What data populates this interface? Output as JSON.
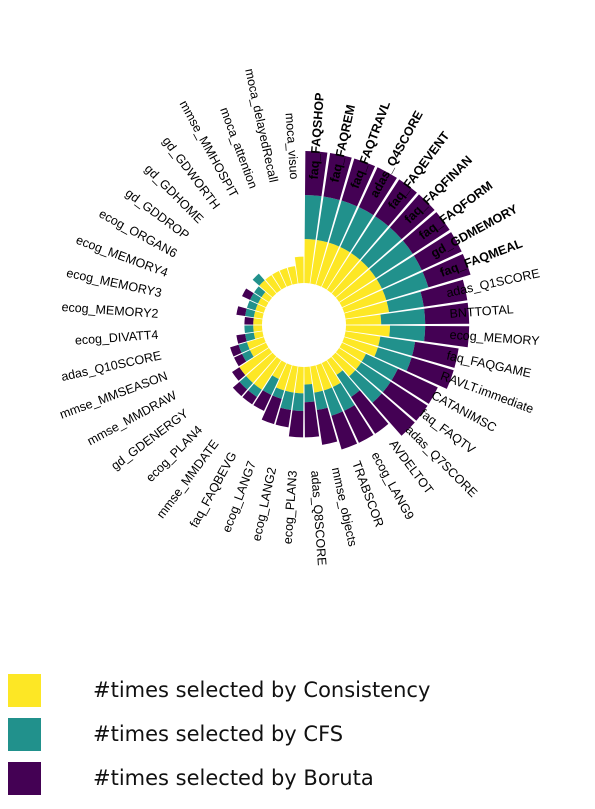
{
  "chart_data": {
    "type": "radial-stacked-bar",
    "title": "",
    "series": [
      {
        "name": "#times selected by Consistency",
        "color": "#fde725"
      },
      {
        "name": "#times selected by CFS",
        "color": "#21918c"
      },
      {
        "name": "#times selected by Boruta",
        "color": "#440154"
      }
    ],
    "categories": [
      {
        "label": "faq_FAQSHOP",
        "bold": true,
        "values": [
          5,
          5,
          5
        ]
      },
      {
        "label": "faq_FAQREM",
        "bold": true,
        "values": [
          5,
          5,
          5
        ]
      },
      {
        "label": "faq_FAQTRAVL",
        "bold": true,
        "values": [
          5,
          5,
          5
        ]
      },
      {
        "label": "adas_Q4SCORE",
        "bold": true,
        "values": [
          5,
          5,
          5
        ]
      },
      {
        "label": "faq_FAQEVENT",
        "bold": true,
        "values": [
          5,
          5,
          5
        ]
      },
      {
        "label": "faq_FAQFINAN",
        "bold": true,
        "values": [
          5,
          5,
          5
        ]
      },
      {
        "label": "faq_FAQFORM",
        "bold": true,
        "values": [
          5,
          5,
          5
        ]
      },
      {
        "label": "gd_GDMEMORY",
        "bold": true,
        "values": [
          5,
          5,
          5
        ]
      },
      {
        "label": "faq_FAQMEAL",
        "bold": true,
        "values": [
          5,
          5,
          5
        ]
      },
      {
        "label": "adas_Q1SCORE",
        "bold": false,
        "values": [
          5,
          4,
          5
        ]
      },
      {
        "label": "BNTTOTAL",
        "bold": false,
        "values": [
          4,
          5,
          5
        ]
      },
      {
        "label": "ecog_MEMORY",
        "bold": false,
        "values": [
          5,
          4,
          5
        ]
      },
      {
        "label": "faq_FAQGAME",
        "bold": false,
        "values": [
          4,
          4,
          5
        ]
      },
      {
        "label": "RAVLT.immediate",
        "bold": false,
        "values": [
          4,
          4,
          5
        ]
      },
      {
        "label": "CATANIMSC",
        "bold": false,
        "values": [
          3,
          4,
          5
        ]
      },
      {
        "label": "faq_FAQTV",
        "bold": false,
        "values": [
          3,
          4,
          5
        ]
      },
      {
        "label": "adas_Q7SCORE",
        "bold": false,
        "values": [
          3,
          4,
          5
        ]
      },
      {
        "label": "AVDELTOT",
        "bold": false,
        "values": [
          2,
          3,
          5
        ]
      },
      {
        "label": "ecog_LANG9",
        "bold": false,
        "values": [
          3,
          3,
          4
        ]
      },
      {
        "label": "TRABSCOR",
        "bold": false,
        "values": [
          3,
          3,
          4
        ]
      },
      {
        "label": "mmse_objects",
        "bold": false,
        "values": [
          3,
          2,
          4
        ]
      },
      {
        "label": "adas_Q8SCORE",
        "bold": false,
        "values": [
          2,
          2,
          4
        ]
      },
      {
        "label": "ecog_PLAN3",
        "bold": false,
        "values": [
          3,
          2,
          3
        ]
      },
      {
        "label": "ecog_LANG2",
        "bold": false,
        "values": [
          3,
          2,
          2
        ]
      },
      {
        "label": "ecog_LANG7",
        "bold": false,
        "values": [
          3,
          1,
          3
        ]
      },
      {
        "label": "faq_FAQBEVG",
        "bold": false,
        "values": [
          2,
          2,
          2
        ]
      },
      {
        "label": "mmse_MMDATE",
        "bold": false,
        "values": [
          4,
          1,
          1
        ]
      },
      {
        "label": "ecog_PLAN4",
        "bold": false,
        "values": [
          4,
          1,
          1
        ]
      },
      {
        "label": "gd_GDENERGY",
        "bold": false,
        "values": [
          4,
          0,
          1
        ]
      },
      {
        "label": "mmse_MMDRAW",
        "bold": false,
        "values": [
          2,
          1,
          1
        ]
      },
      {
        "label": "mmse_MMSEASON",
        "bold": false,
        "values": [
          2,
          1,
          1
        ]
      },
      {
        "label": "adas_Q10SCORE",
        "bold": false,
        "values": [
          1,
          1,
          1
        ]
      },
      {
        "label": "ecog_DIVATT4",
        "bold": false,
        "values": [
          1,
          1,
          0
        ]
      },
      {
        "label": "ecog_MEMORY2",
        "bold": false,
        "values": [
          1,
          0,
          1
        ]
      },
      {
        "label": "ecog_MEMORY3",
        "bold": false,
        "values": [
          1,
          1,
          1
        ]
      },
      {
        "label": "ecog_MEMORY4",
        "bold": false,
        "values": [
          1,
          1,
          0
        ]
      },
      {
        "label": "ecog_ORGAN6",
        "bold": false,
        "values": [
          1,
          1,
          1
        ]
      },
      {
        "label": "gd_GDDROP",
        "bold": false,
        "values": [
          1,
          1,
          0
        ]
      },
      {
        "label": "gd_GDHOME",
        "bold": false,
        "values": [
          2,
          1,
          0
        ]
      },
      {
        "label": "gd_GDWORTH",
        "bold": false,
        "values": [
          2,
          0,
          0
        ]
      },
      {
        "label": "mmse_MMHOSPIT",
        "bold": false,
        "values": [
          2,
          0,
          0
        ]
      },
      {
        "label": "moca_attention",
        "bold": false,
        "values": [
          2,
          0,
          0
        ]
      },
      {
        "label": "moca_delayedRecall",
        "bold": false,
        "values": [
          2,
          0,
          0
        ]
      },
      {
        "label": "moca_visuo",
        "bold": false,
        "values": [
          3,
          0,
          0
        ]
      }
    ]
  },
  "legend": {
    "items": [
      {
        "label": "#times selected by Consistency",
        "color": "#fde725"
      },
      {
        "label": "#times selected by CFS",
        "color": "#21918c"
      },
      {
        "label": "#times selected by Boruta",
        "color": "#440154"
      }
    ]
  }
}
